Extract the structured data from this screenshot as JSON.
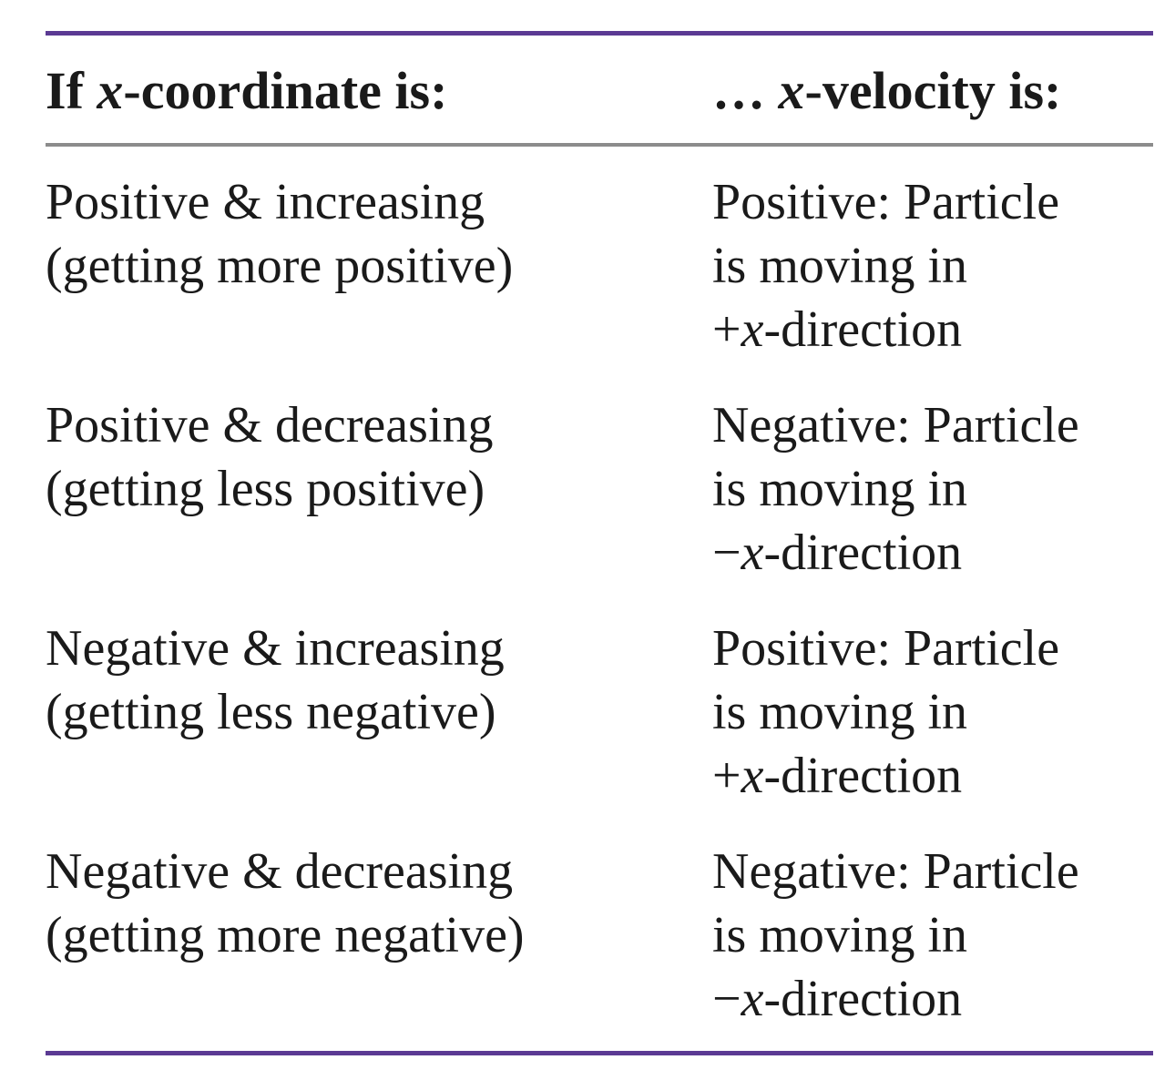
{
  "header": {
    "col1": {
      "prefix": "If ",
      "var": "x",
      "suffix": "-coordinate is:"
    },
    "col2": {
      "prefix": "… ",
      "var": "x",
      "suffix": "-velocity is:"
    }
  },
  "rows": [
    {
      "coordinate": [
        "Positive & increasing",
        "(getting more positive)"
      ],
      "velocity": {
        "line1": "Positive: Particle",
        "line2": "is moving in",
        "line3": {
          "sign": "+",
          "var": "x",
          "suffix": "-direction"
        }
      }
    },
    {
      "coordinate": [
        "Positive & decreasing",
        "(getting less positive)"
      ],
      "velocity": {
        "line1": "Negative: Particle",
        "line2": "is moving in",
        "line3": {
          "sign": "−",
          "var": "x",
          "suffix": "-direction"
        }
      }
    },
    {
      "coordinate": [
        "Negative & increasing",
        "(getting less negative)"
      ],
      "velocity": {
        "line1": "Positive: Particle",
        "line2": "is moving in",
        "line3": {
          "sign": "+",
          "var": "x",
          "suffix": "-direction"
        }
      }
    },
    {
      "coordinate": [
        "Negative & decreasing",
        "(getting more negative)"
      ],
      "velocity": {
        "line1": "Negative: Particle",
        "line2": "is moving in",
        "line3": {
          "sign": "−",
          "var": "x",
          "suffix": "-direction"
        }
      }
    }
  ],
  "colors": {
    "outer_rule": "#5b3a93",
    "header_rule": "#8c8c8c",
    "text": "#1a1a1a"
  }
}
